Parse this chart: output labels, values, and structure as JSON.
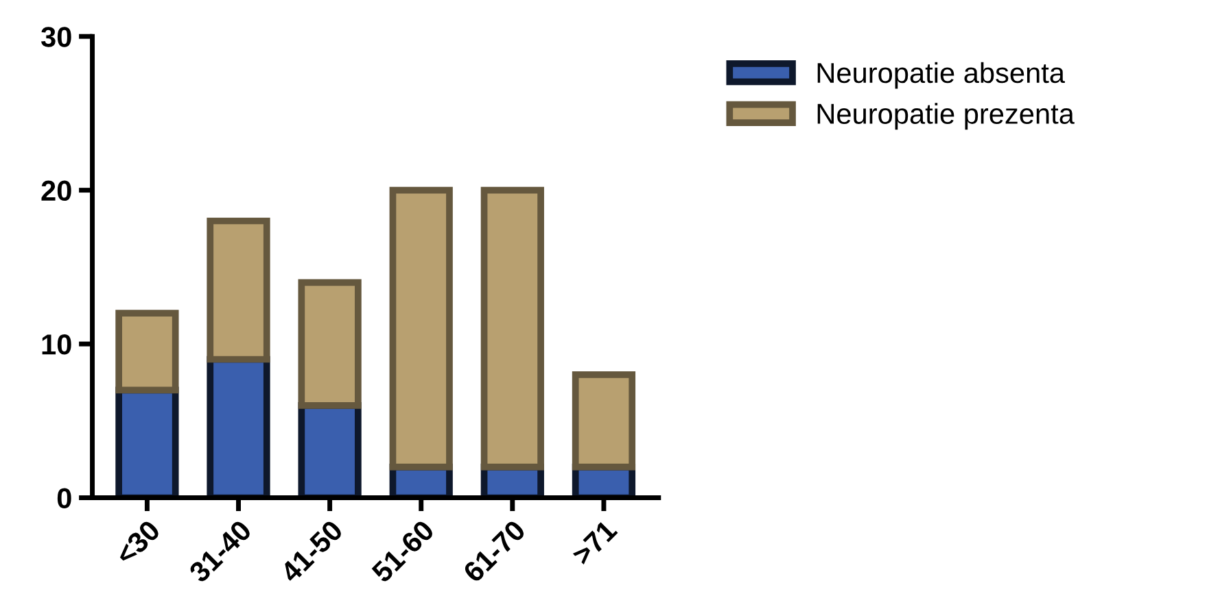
{
  "chart_data": {
    "type": "bar",
    "stacked": true,
    "categories": [
      "<30",
      "31-40",
      "41-50",
      "51-60",
      "61-70",
      ">71"
    ],
    "series": [
      {
        "name": "Neuropatie absenta",
        "color": "#3a5fae",
        "values": [
          7,
          9,
          6,
          2,
          2,
          2
        ]
      },
      {
        "name": "Neuropatie prezenta",
        "color": "#b8a070",
        "values": [
          5,
          9,
          8,
          18,
          18,
          6
        ]
      }
    ],
    "ylim": [
      0,
      30
    ],
    "yticks": [
      0,
      10,
      20,
      30
    ],
    "grid": false,
    "legend": "top right"
  }
}
